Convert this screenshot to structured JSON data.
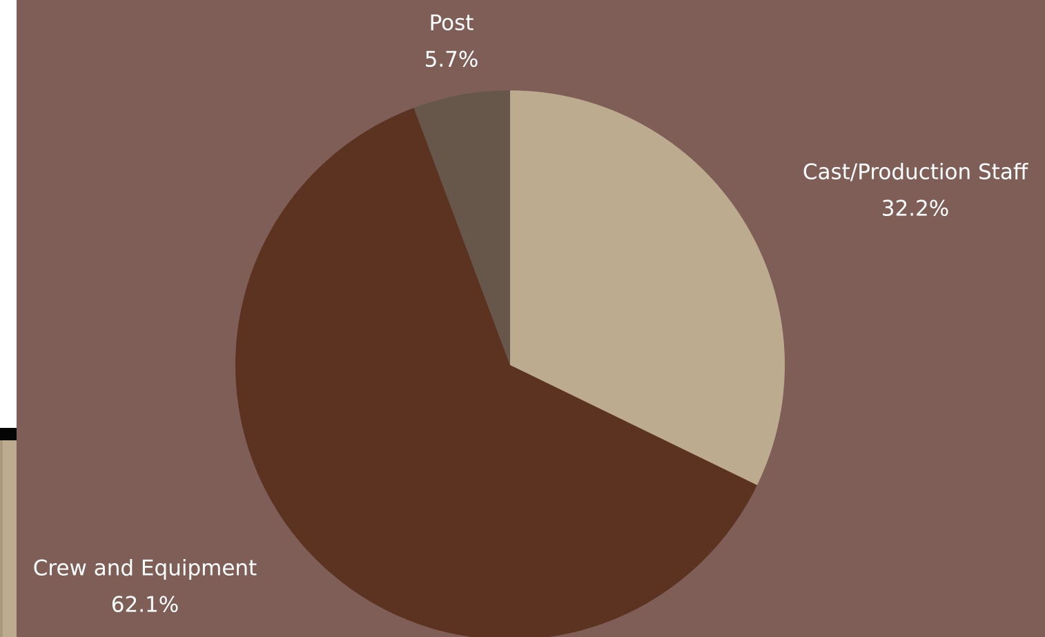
{
  "chart_data": {
    "type": "pie",
    "categories": [
      "Cast/Production Staff",
      "Crew and Equipment",
      "Post"
    ],
    "values": [
      32.2,
      62.1,
      5.7
    ],
    "value_labels": [
      "32.2%",
      "62.1%",
      "5.7%"
    ],
    "colors": [
      "#bdab8f",
      "#5c3220",
      "#66574a"
    ]
  }
}
